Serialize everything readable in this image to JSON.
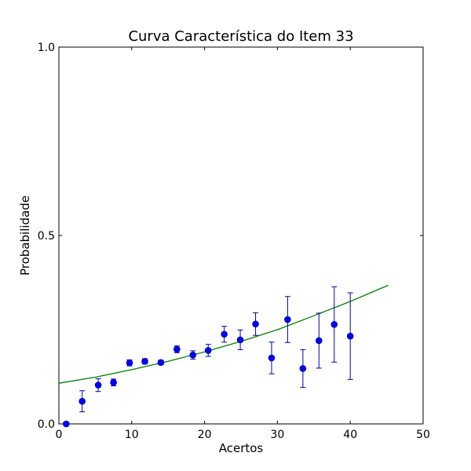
{
  "chart_data": {
    "type": "scatter",
    "title": "Curva Característica do Item 33",
    "xlabel": "Acertos",
    "ylabel": "Probabilidade",
    "xlim": [
      0,
      50
    ],
    "ylim": [
      0,
      1
    ],
    "x_ticks": [
      "0",
      "10",
      "20",
      "30",
      "40",
      "50"
    ],
    "y_ticks": [
      "0.0",
      "0.5",
      "1.0"
    ],
    "grid": false,
    "legend": "none",
    "colors": {
      "points": "#0000ff",
      "errorbars": "#0000aa",
      "curve": "#008000"
    },
    "points": [
      {
        "x": 1.0,
        "y": 0.0,
        "err": 0.0
      },
      {
        "x": 3.2,
        "y": 0.06,
        "err": 0.028
      },
      {
        "x": 5.4,
        "y": 0.103,
        "err": 0.017
      },
      {
        "x": 7.5,
        "y": 0.11,
        "err": 0.009
      },
      {
        "x": 9.7,
        "y": 0.162,
        "err": 0.008
      },
      {
        "x": 11.8,
        "y": 0.166,
        "err": 0.007
      },
      {
        "x": 14.0,
        "y": 0.163,
        "err": 0.006
      },
      {
        "x": 16.2,
        "y": 0.198,
        "err": 0.009
      },
      {
        "x": 18.4,
        "y": 0.183,
        "err": 0.011
      },
      {
        "x": 20.5,
        "y": 0.195,
        "err": 0.016
      },
      {
        "x": 22.7,
        "y": 0.238,
        "err": 0.021
      },
      {
        "x": 24.9,
        "y": 0.223,
        "err": 0.026
      },
      {
        "x": 27.0,
        "y": 0.265,
        "err": 0.03
      },
      {
        "x": 29.2,
        "y": 0.175,
        "err": 0.042
      },
      {
        "x": 31.4,
        "y": 0.277,
        "err": 0.061
      },
      {
        "x": 33.5,
        "y": 0.147,
        "err": 0.05
      },
      {
        "x": 35.7,
        "y": 0.221,
        "err": 0.073
      },
      {
        "x": 37.8,
        "y": 0.264,
        "err": 0.1
      },
      {
        "x": 40.0,
        "y": 0.233,
        "err": 0.115
      }
    ],
    "curve": {
      "x": [
        0,
        5,
        10,
        15,
        20,
        25,
        30,
        35,
        40,
        45.2
      ],
      "y": [
        0.108,
        0.124,
        0.144,
        0.166,
        0.191,
        0.219,
        0.25,
        0.287,
        0.325,
        0.368
      ]
    }
  }
}
